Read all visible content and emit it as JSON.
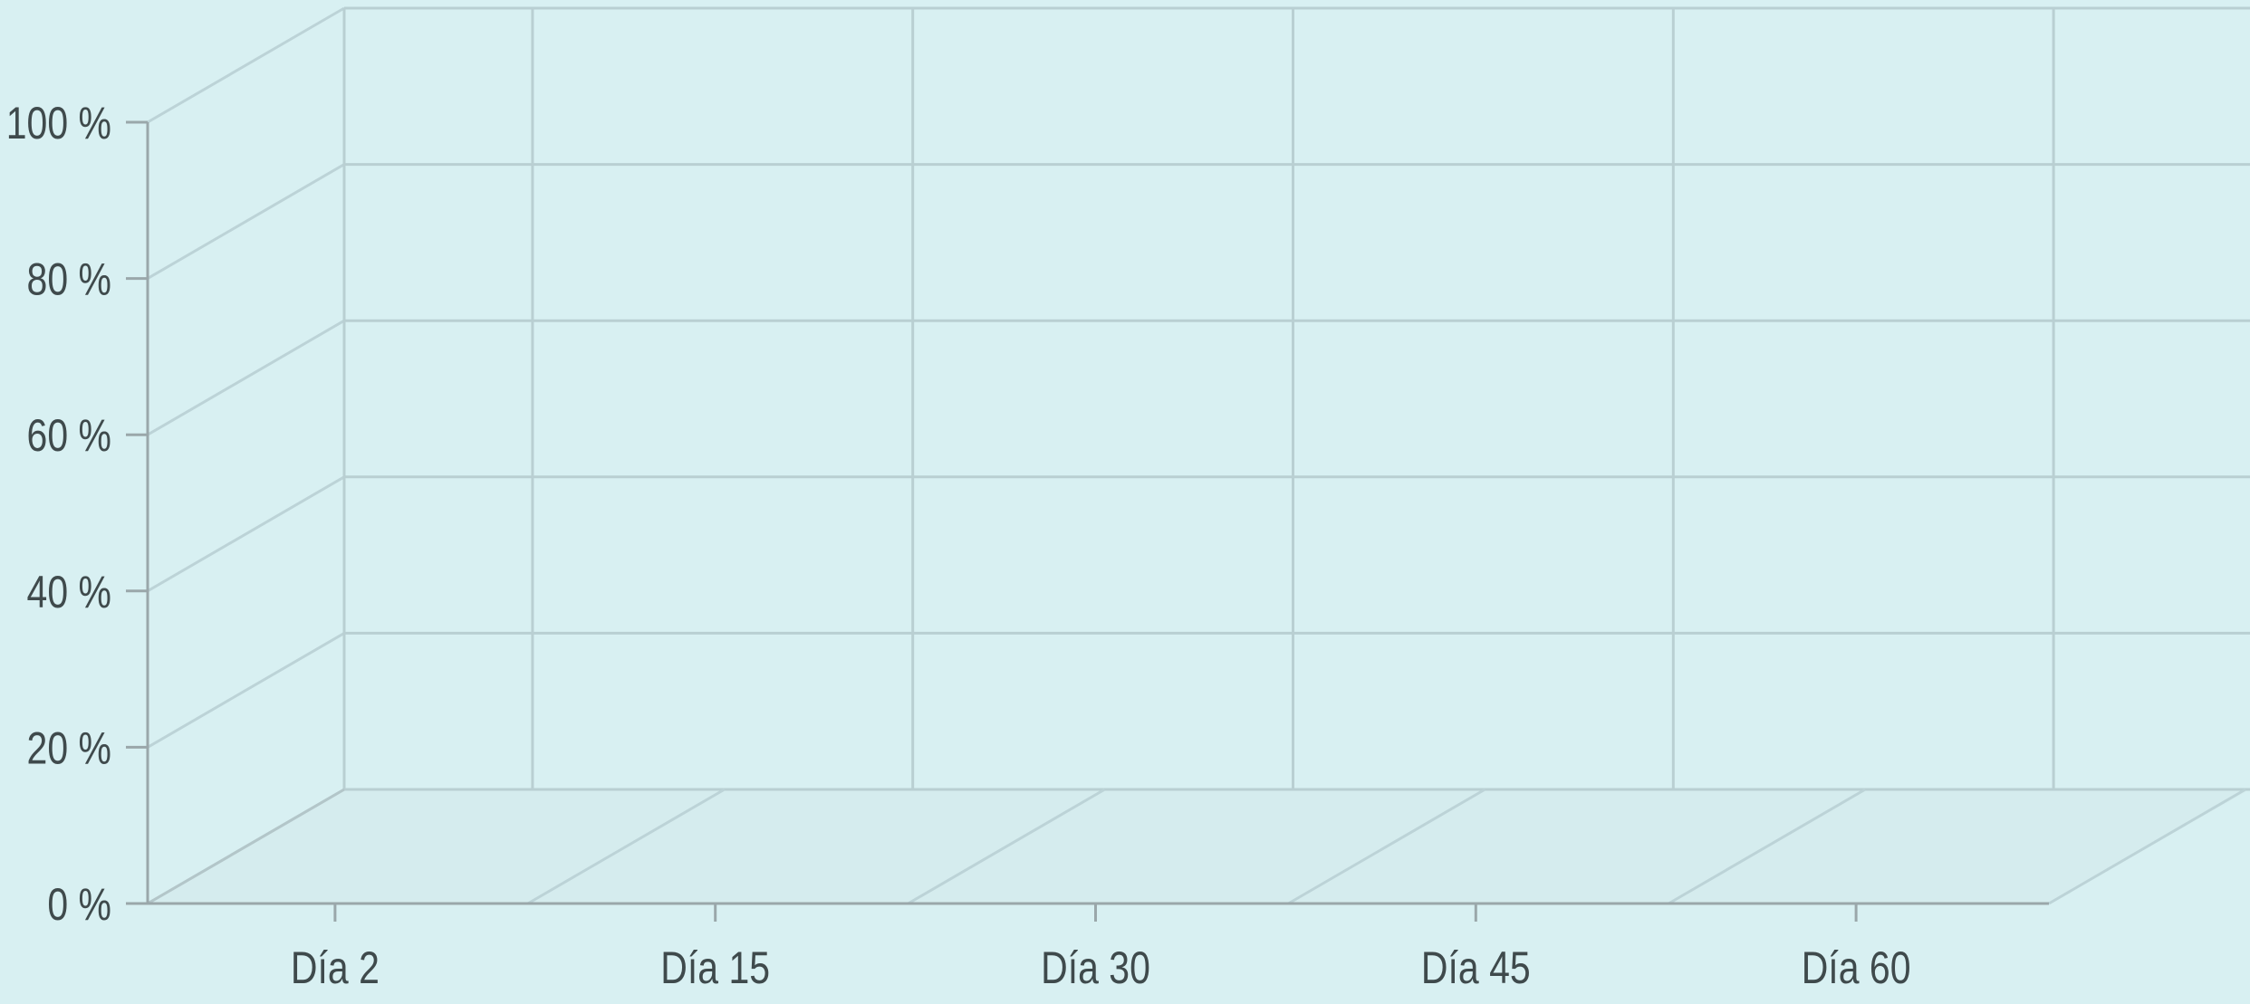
{
  "colors": {
    "background": "#d8f0f2",
    "floor": "#d5ecee",
    "grid": "#bcd3d7",
    "grid_back": "#b9cfd2",
    "axis": "#9aa7aa",
    "text": "#3f4a4c"
  },
  "chart_data": {
    "type": "bar",
    "projection": "3d",
    "categories": [
      "Día 2",
      "Día 15",
      "Día 30",
      "Día 45",
      "Día 60"
    ],
    "series": [],
    "title": "",
    "xlabel": "",
    "ylabel": "",
    "ylim": [
      0,
      100
    ],
    "y_ticks": [
      0,
      20,
      40,
      60,
      80,
      100
    ],
    "y_tick_labels": [
      "0 %",
      "20 %",
      "40 %",
      "60 %",
      "80 %",
      "100 %"
    ],
    "grid": true,
    "legend": "none"
  }
}
